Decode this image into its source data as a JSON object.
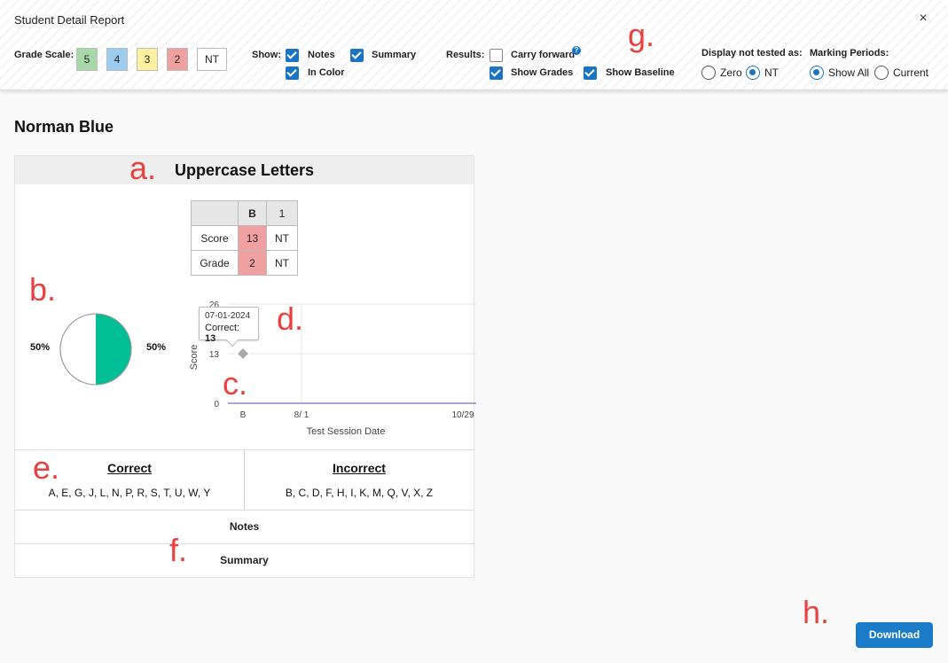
{
  "header": {
    "title": "Student Detail Report",
    "close_glyph": "×",
    "grade_scale": {
      "label": "Grade Scale:",
      "boxes": [
        {
          "label": "5",
          "color": "#a8d8a8"
        },
        {
          "label": "4",
          "color": "#9ccbf0"
        },
        {
          "label": "3",
          "color": "#fdf1a0"
        },
        {
          "label": "2",
          "color": "#f0a0a0"
        },
        {
          "label": "NT",
          "color": "#ffffff"
        }
      ]
    },
    "show": {
      "label": "Show:",
      "notes": "Notes",
      "summary": "Summary",
      "in_color": "In Color"
    },
    "results": {
      "label": "Results:",
      "carry_forward": "Carry forward",
      "show_grades": "Show Grades",
      "show_baseline": "Show Baseline",
      "help_glyph": "?"
    },
    "display_not_tested": {
      "label": "Display not tested as:",
      "zero": "Zero",
      "nt": "NT"
    },
    "marking_periods": {
      "label": "Marking Periods:",
      "show_all": "Show All",
      "current": "Current"
    }
  },
  "student": {
    "name": "Norman Blue"
  },
  "card": {
    "title": "Uppercase Letters",
    "table": {
      "columns": [
        "",
        "B",
        "1"
      ],
      "rows": [
        {
          "label": "Score",
          "values": [
            "13",
            "NT"
          ]
        },
        {
          "label": "Grade",
          "values": [
            "2",
            "NT"
          ]
        }
      ],
      "highlight_color": "#f0a0a0"
    },
    "pie": {
      "left_pct": "50%",
      "right_pct": "50%",
      "fill_color": "#00bf96"
    },
    "tooltip": {
      "date": "07-01-2024",
      "correct_label": "Correct:",
      "correct_value": "13"
    },
    "correct": {
      "heading": "Correct",
      "letters": "A, E, G, J, L, N, P, R, S, T, U, W, Y"
    },
    "incorrect": {
      "heading": "Incorrect",
      "letters": "B, C, D, F, H, I, K, M, Q, V, X, Z"
    },
    "notes_label": "Notes",
    "summary_label": "Summary"
  },
  "chart_data": {
    "type": "line",
    "ylabel": "Score",
    "xlabel": "Test Session Date",
    "y_ticks": [
      "0",
      "13",
      "26"
    ],
    "x_ticks": [
      "B",
      "8/ 1",
      "10/29"
    ],
    "ylim": [
      0,
      26
    ],
    "points": [
      {
        "x": "B",
        "y": 13
      }
    ]
  },
  "annotations": {
    "a": "a.",
    "b": "b.",
    "c": "c.",
    "d": "d.",
    "e": "e.",
    "f": "f.",
    "g": "g.",
    "h": "h."
  },
  "footer": {
    "download_label": "Download"
  }
}
